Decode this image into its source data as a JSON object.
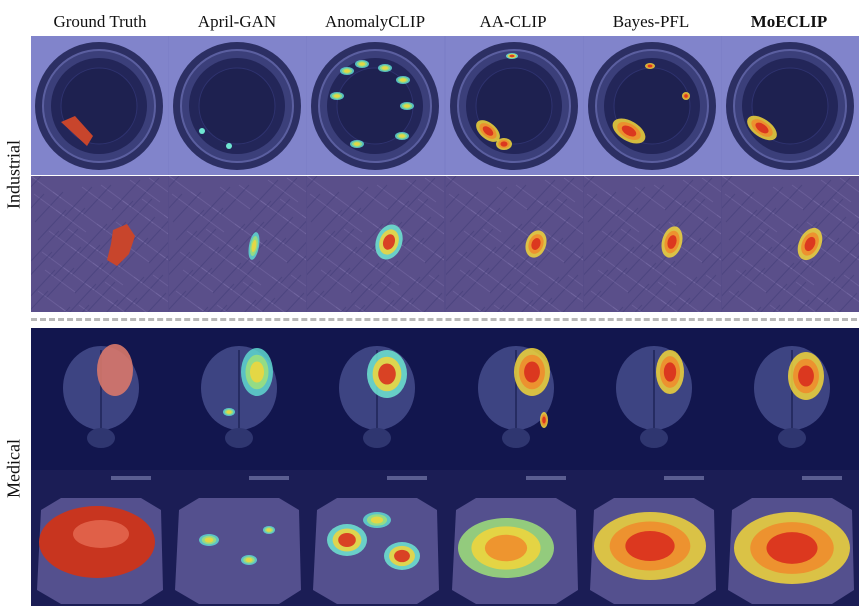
{
  "columns": [
    "Ground Truth",
    "April-GAN",
    "AnomalyCLIP",
    "AA-CLIP",
    "Bayes-PFL",
    "MoECLIP"
  ],
  "row_groups": [
    {
      "label": "Industrial"
    },
    {
      "label": "Medical"
    }
  ],
  "rows": [
    {
      "name": "bottle",
      "group": "Industrial"
    },
    {
      "name": "carpet",
      "group": "Industrial"
    },
    {
      "name": "brain",
      "group": "Medical"
    },
    {
      "name": "endoscopy",
      "group": "Medical"
    }
  ],
  "colors": {
    "bottle_bg": "#7d80c8",
    "carpet_bg": "#564c88",
    "brain_bg": "#12164e",
    "endo_bg": "#1b1d55",
    "heat_red": "#d8281c",
    "heat_yellow": "#f3d23a",
    "heat_cyan": "#6fe6d2"
  }
}
